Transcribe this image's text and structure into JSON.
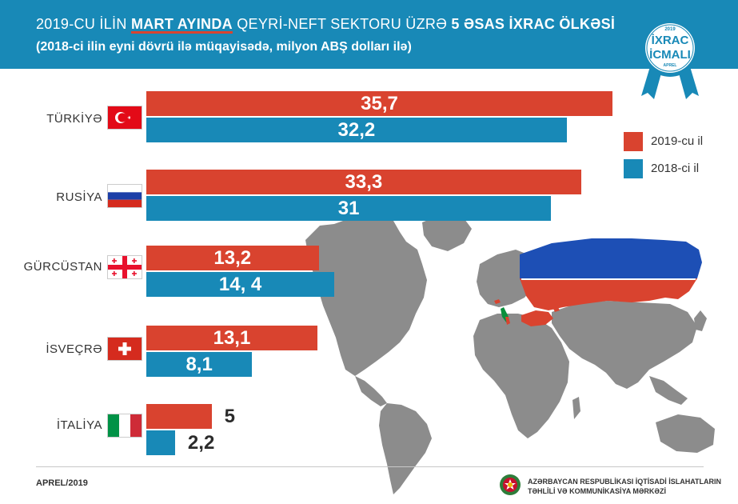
{
  "header": {
    "title_part1": "2019-CU İLİN ",
    "title_highlight": "MART AYINDA",
    "title_part2": "  QEYRİ-NEFT SEKTORU ÜZRƏ ",
    "title_bold": "5 ƏSAS İXRAC ÖLKƏSİ",
    "subtitle": "(2018-ci ilin eyni dövrü ilə müqayisədə, milyon ABŞ dolları ilə)"
  },
  "badge": {
    "year": "2019",
    "line1": "İXRAC",
    "line2": "İCMALI",
    "month": "APREL"
  },
  "chart_data": {
    "type": "bar",
    "orientation": "horizontal",
    "categories": [
      "TÜRKİYƏ",
      "RUSİYA",
      "GÜRCÜSTAN",
      "İSVEÇRƏ",
      "İTALİYA"
    ],
    "series": [
      {
        "name": "2019-cu il",
        "color": "#d9432f",
        "values": [
          35.7,
          33.3,
          13.2,
          13.1,
          5
        ],
        "labels": [
          "35,7",
          "33,3",
          "13,2",
          "13,1",
          "5"
        ]
      },
      {
        "name": "2018-ci il",
        "color": "#1889b7",
        "values": [
          32.2,
          31,
          14.4,
          8.1,
          2.2
        ],
        "labels": [
          "32,2",
          "31",
          "14, 4",
          "8,1",
          "2,2"
        ]
      }
    ],
    "legend_position": "right"
  },
  "footer": {
    "date": "APREL/2019",
    "org_line1": "AZƏRBAYCAN RESPUBLİKASI İQTİSADİ İSLAHATLARIN",
    "org_line2": "TƏHLİLİ VƏ KOMMUNİKASİYA MƏRKƏZİ"
  }
}
